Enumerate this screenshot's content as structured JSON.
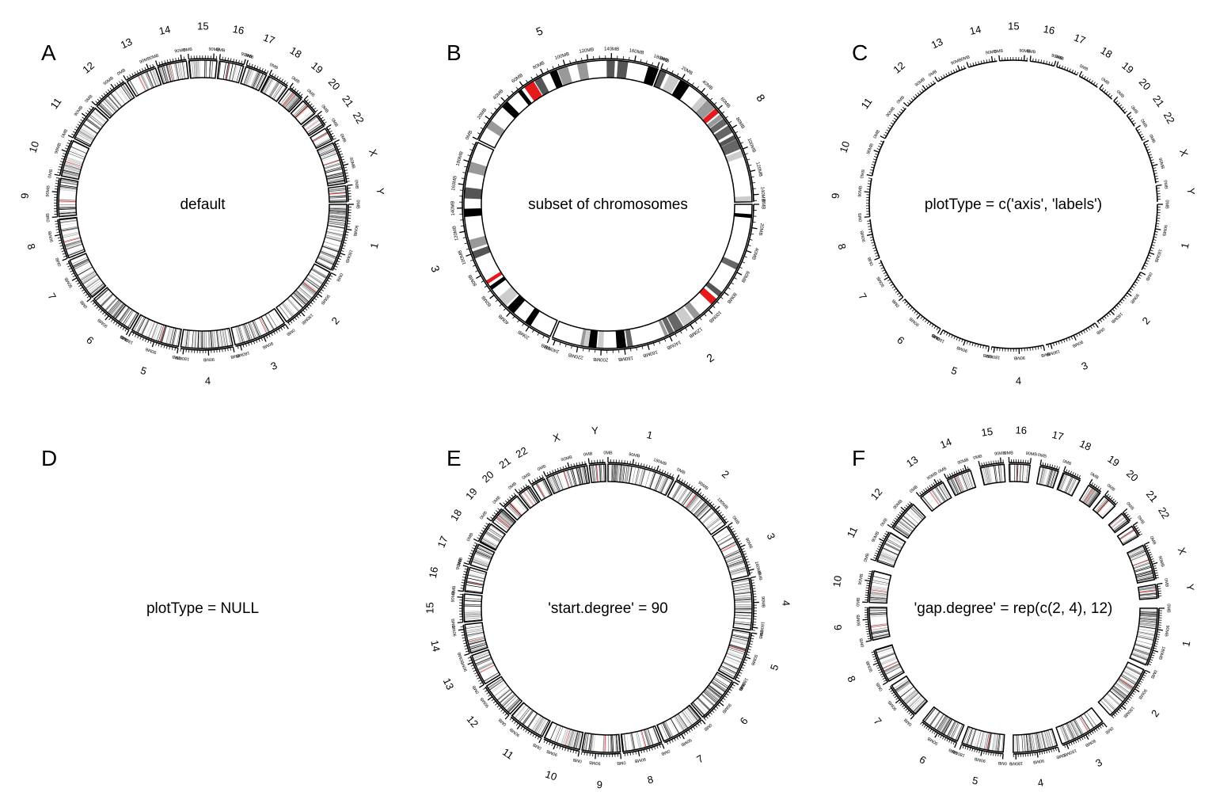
{
  "panels": [
    {
      "id": "A",
      "letter": "A",
      "caption": "default",
      "show": [
        "ideogram",
        "axis",
        "labels"
      ],
      "order": [
        "1",
        "2",
        "3",
        "4",
        "5",
        "6",
        "7",
        "8",
        "9",
        "10",
        "11",
        "12",
        "13",
        "14",
        "15",
        "16",
        "17",
        "18",
        "19",
        "20",
        "21",
        "22",
        "X",
        "Y"
      ],
      "start_degree": 0,
      "gap_degree": 1
    },
    {
      "id": "B",
      "letter": "B",
      "caption": "subset of chromosomes",
      "show": [
        "ideogram",
        "axis",
        "labels"
      ],
      "order": [
        "2",
        "3",
        "5",
        "8"
      ],
      "start_degree": 0,
      "gap_degree": 1,
      "subset": true
    },
    {
      "id": "C",
      "letter": "C",
      "caption": "plotType = c('axis', 'labels')",
      "show": [
        "axis",
        "labels"
      ],
      "order": [
        "1",
        "2",
        "3",
        "4",
        "5",
        "6",
        "7",
        "8",
        "9",
        "10",
        "11",
        "12",
        "13",
        "14",
        "15",
        "16",
        "17",
        "18",
        "19",
        "20",
        "21",
        "22",
        "X",
        "Y"
      ],
      "start_degree": 0,
      "gap_degree": 1
    },
    {
      "id": "D",
      "letter": "D",
      "caption": "plotType = NULL",
      "show": [],
      "order": [],
      "start_degree": 0,
      "gap_degree": 1
    },
    {
      "id": "E",
      "letter": "E",
      "caption": "'start.degree' = 90",
      "show": [
        "ideogram",
        "axis",
        "labels"
      ],
      "order": [
        "1",
        "2",
        "3",
        "4",
        "5",
        "6",
        "7",
        "8",
        "9",
        "10",
        "11",
        "12",
        "13",
        "14",
        "15",
        "16",
        "17",
        "18",
        "19",
        "20",
        "21",
        "22",
        "X",
        "Y"
      ],
      "start_degree": 90,
      "gap_degree": 1
    },
    {
      "id": "F",
      "letter": "F",
      "caption": "'gap.degree' = rep(c(2, 4), 12)",
      "show": [
        "ideogram",
        "axis",
        "labels"
      ],
      "order": [
        "1",
        "2",
        "3",
        "4",
        "5",
        "6",
        "7",
        "8",
        "9",
        "10",
        "11",
        "12",
        "13",
        "14",
        "15",
        "16",
        "17",
        "18",
        "19",
        "20",
        "21",
        "22",
        "X",
        "Y"
      ],
      "start_degree": 0,
      "gap_degree": [
        2,
        4,
        2,
        4,
        2,
        4,
        2,
        4,
        2,
        4,
        2,
        4,
        2,
        4,
        2,
        4,
        2,
        4,
        2,
        4,
        2,
        4,
        2,
        4
      ]
    }
  ],
  "chromosome_lengths_mb": {
    "1": 249,
    "2": 243,
    "3": 198,
    "4": 191,
    "5": 181,
    "6": 171,
    "7": 159,
    "8": 146,
    "9": 141,
    "10": 136,
    "11": 135,
    "12": 134,
    "13": 115,
    "14": 107,
    "15": 103,
    "16": 90,
    "17": 81,
    "18": 78,
    "19": 59,
    "20": 63,
    "21": 48,
    "22": 51,
    "X": 155,
    "Y": 59
  },
  "axis_unit": "MB",
  "band_colors": {
    "gpos100": "#000000",
    "gpos75": "#666666",
    "gpos50": "#999999",
    "gpos25": "#cccccc",
    "gneg": "#ffffff",
    "acen": "#e41a1c",
    "gvar": "#555555"
  }
}
